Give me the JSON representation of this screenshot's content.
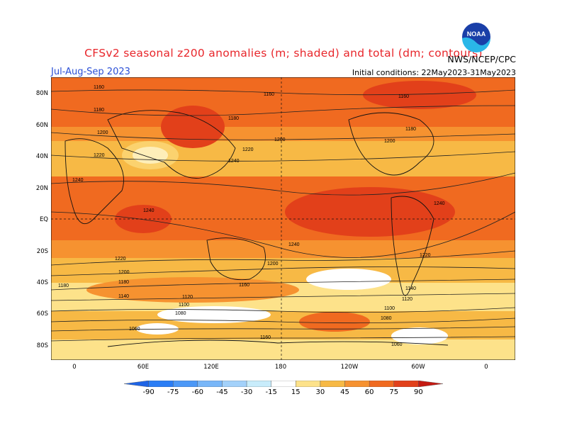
{
  "header": {
    "title": "CFSv2 seasonal z200 anomalies (m; shaded) and total (dm; contours)",
    "season": "Jul-Aug-Sep 2023",
    "initial_conditions": "Initial conditions: 22May2023-31May2023",
    "agency": "NWS/NCEP/CPC",
    "logo_text": "NOAA",
    "logo_icon": "noaa-logo-icon"
  },
  "map": {
    "lat_labels": [
      "80N",
      "60N",
      "40N",
      "20N",
      "EQ",
      "20S",
      "40S",
      "60S",
      "80S"
    ],
    "lon_labels": [
      "0",
      "60E",
      "120E",
      "180",
      "120W",
      "60W",
      "0"
    ],
    "contour_labels": [
      "1160",
      "1160",
      "1160",
      "1180",
      "1180",
      "1180",
      "1200",
      "1200",
      "1200",
      "1220",
      "1220",
      "1240",
      "1240",
      "1240",
      "1240",
      "1240",
      "1220",
      "1220",
      "1200",
      "1200",
      "1180",
      "1180",
      "1160",
      "1140",
      "1120",
      "1100",
      "1080",
      "1060",
      "1160",
      "1140",
      "1120",
      "1100",
      "1080",
      "1060"
    ]
  },
  "colorbar": {
    "labels": [
      "-90",
      "-75",
      "-60",
      "-45",
      "-30",
      "-15",
      "15",
      "30",
      "45",
      "60",
      "75",
      "90"
    ],
    "colors": [
      "#1e64e6",
      "#2a7df5",
      "#4c98f7",
      "#78b6f8",
      "#a3d1fa",
      "#c8ecfb",
      "#ffffff",
      "#fde28a",
      "#f7b945",
      "#f69230",
      "#f06a20",
      "#e2401a",
      "#c41a12"
    ]
  }
}
